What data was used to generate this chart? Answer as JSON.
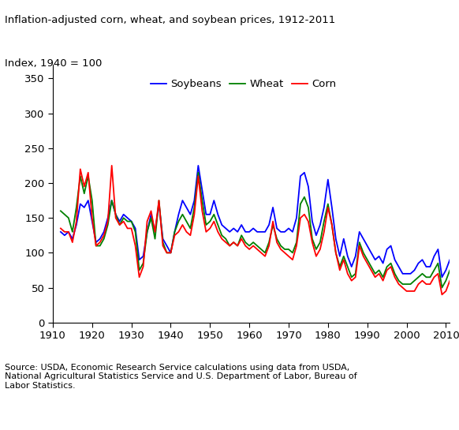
{
  "title": "Inflation-adjusted corn, wheat, and soybean prices, 1912-2011",
  "ylabel": "Index, 1940 = 100",
  "xlim": [
    1910,
    2011
  ],
  "ylim": [
    0,
    370
  ],
  "yticks": [
    0,
    50,
    100,
    150,
    200,
    250,
    300,
    350
  ],
  "xticks": [
    1910,
    1920,
    1930,
    1940,
    1950,
    1960,
    1970,
    1980,
    1990,
    2000,
    2010
  ],
  "source_text": "Source: USDA, Economic Research Service calculations using data from USDA,\nNational Agricultural Statistics Service and U.S. Department of Labor, Bureau of\nLabor Statistics.",
  "corn_color": "#FF0000",
  "wheat_color": "#008000",
  "soybean_color": "#0000FF",
  "line_width": 1.3,
  "years": [
    1912,
    1913,
    1914,
    1915,
    1916,
    1917,
    1918,
    1919,
    1920,
    1921,
    1922,
    1923,
    1924,
    1925,
    1926,
    1927,
    1928,
    1929,
    1930,
    1931,
    1932,
    1933,
    1934,
    1935,
    1936,
    1937,
    1938,
    1939,
    1940,
    1941,
    1942,
    1943,
    1944,
    1945,
    1946,
    1947,
    1948,
    1949,
    1950,
    1951,
    1952,
    1953,
    1954,
    1955,
    1956,
    1957,
    1958,
    1959,
    1960,
    1961,
    1962,
    1963,
    1964,
    1965,
    1966,
    1967,
    1968,
    1969,
    1970,
    1971,
    1972,
    1973,
    1974,
    1975,
    1976,
    1977,
    1978,
    1979,
    1980,
    1981,
    1982,
    1983,
    1984,
    1985,
    1986,
    1987,
    1988,
    1989,
    1990,
    1991,
    1992,
    1993,
    1994,
    1995,
    1996,
    1997,
    1998,
    1999,
    2000,
    2001,
    2002,
    2003,
    2004,
    2005,
    2006,
    2007,
    2008,
    2009,
    2010,
    2011
  ],
  "corn": [
    135,
    130,
    130,
    115,
    145,
    220,
    195,
    215,
    150,
    110,
    115,
    125,
    145,
    225,
    150,
    140,
    145,
    135,
    135,
    110,
    65,
    80,
    145,
    160,
    130,
    175,
    110,
    100,
    100,
    125,
    130,
    140,
    130,
    125,
    155,
    210,
    160,
    130,
    135,
    145,
    130,
    120,
    115,
    110,
    115,
    110,
    120,
    110,
    105,
    110,
    105,
    100,
    95,
    110,
    145,
    115,
    105,
    100,
    95,
    90,
    110,
    150,
    155,
    145,
    115,
    95,
    105,
    130,
    165,
    140,
    100,
    75,
    90,
    70,
    60,
    65,
    110,
    95,
    85,
    75,
    65,
    70,
    60,
    75,
    80,
    65,
    55,
    50,
    45,
    45,
    45,
    55,
    60,
    55,
    55,
    65,
    70,
    40,
    45,
    60
  ],
  "wheat": [
    160,
    155,
    150,
    130,
    165,
    210,
    185,
    210,
    175,
    110,
    110,
    120,
    140,
    175,
    155,
    140,
    150,
    145,
    145,
    130,
    75,
    85,
    130,
    150,
    120,
    175,
    115,
    100,
    100,
    130,
    145,
    155,
    145,
    135,
    165,
    215,
    175,
    140,
    145,
    155,
    140,
    125,
    120,
    110,
    115,
    110,
    125,
    115,
    110,
    115,
    110,
    105,
    100,
    115,
    140,
    120,
    110,
    105,
    105,
    100,
    115,
    170,
    180,
    165,
    120,
    105,
    115,
    145,
    170,
    140,
    100,
    80,
    95,
    80,
    65,
    70,
    115,
    100,
    90,
    80,
    70,
    75,
    65,
    80,
    85,
    70,
    60,
    55,
    55,
    55,
    60,
    65,
    70,
    65,
    65,
    75,
    85,
    50,
    60,
    75
  ],
  "soybeans": [
    130,
    125,
    130,
    120,
    140,
    170,
    165,
    175,
    145,
    115,
    120,
    130,
    150,
    175,
    155,
    145,
    155,
    150,
    145,
    135,
    90,
    95,
    130,
    155,
    130,
    170,
    120,
    110,
    100,
    130,
    155,
    175,
    165,
    155,
    175,
    225,
    190,
    155,
    155,
    175,
    155,
    140,
    135,
    130,
    135,
    130,
    140,
    130,
    130,
    135,
    130,
    130,
    130,
    140,
    165,
    135,
    130,
    130,
    135,
    130,
    150,
    210,
    215,
    195,
    145,
    125,
    140,
    165,
    205,
    165,
    120,
    95,
    120,
    95,
    80,
    95,
    130,
    120,
    110,
    100,
    90,
    95,
    85,
    105,
    110,
    90,
    80,
    70,
    70,
    70,
    75,
    85,
    90,
    80,
    80,
    95,
    105,
    65,
    75,
    90
  ]
}
